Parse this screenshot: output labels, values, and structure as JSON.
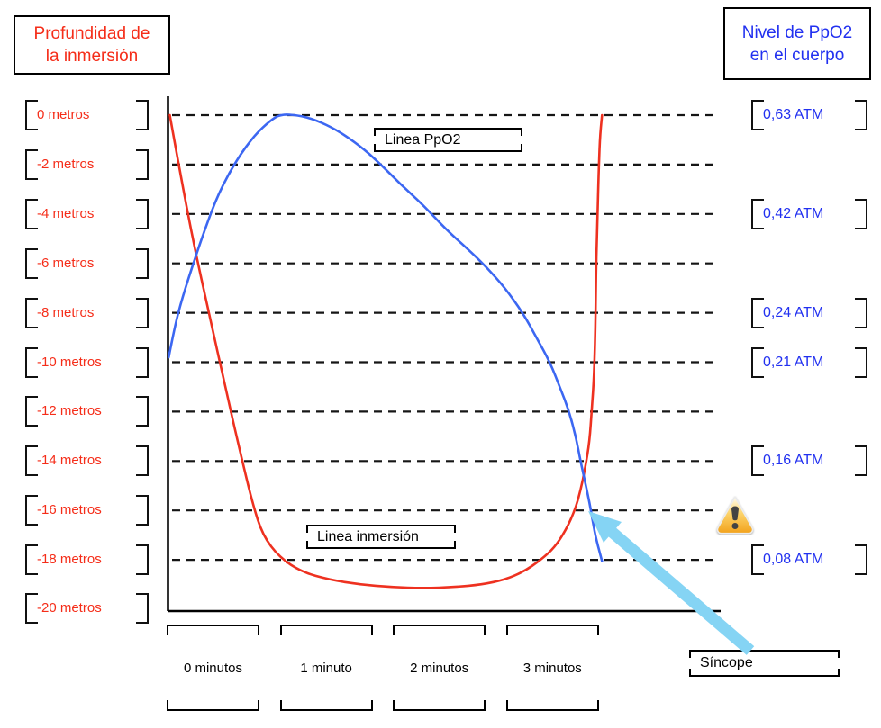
{
  "titles": {
    "left": [
      "Profundidad de",
      "la inmersión"
    ],
    "right": [
      "Nivel de PpO2",
      "en el cuerpo"
    ]
  },
  "annotations": {
    "ppo2_line_label": "Linea PpO2",
    "immersion_line_label": "Linea inmersión",
    "syncope_label": "Síncope",
    "warning_icon": "warning-icon at curve crossing"
  },
  "colors": {
    "red_text": "#f52d19",
    "blue_text": "#2130f0",
    "red_curve": "#ee3120",
    "blue_curve": "#3c67f2",
    "arrow": "#85d4f4",
    "grid": "#151515"
  },
  "axis": {
    "rows": [
      {
        "depth": "0 metros",
        "atm": "0,63 ATM"
      },
      {
        "depth": "-2 metros"
      },
      {
        "depth": "-4 metros",
        "atm": "0,42 ATM"
      },
      {
        "depth": "-6 metros"
      },
      {
        "depth": "-8 metros",
        "atm": "0,24 ATM"
      },
      {
        "depth": "-10 metros",
        "atm": "0,21 ATM"
      },
      {
        "depth": "-12 metros"
      },
      {
        "depth": "-14 metros",
        "atm": "0,16 ATM"
      },
      {
        "depth": "-16 metros"
      },
      {
        "depth": "-18 metros",
        "atm": "0,08 ATM"
      }
    ],
    "extra_depth_label": "-20 metros",
    "time_labels": [
      "0 minutos",
      "1 minuto",
      "2 minutos",
      "3 minutos"
    ]
  },
  "chart_data": {
    "type": "line",
    "title": "",
    "x": {
      "unit": "minutos",
      "tick_labels": [
        "0 minutos",
        "1 minuto",
        "2 minutos",
        "3 minutos"
      ],
      "range": [
        0,
        3.9
      ]
    },
    "y_left": {
      "unit": "metros",
      "range": [
        -20,
        0
      ],
      "tick_labels": [
        "0 metros",
        "-2 metros",
        "-4 metros",
        "-6 metros",
        "-8 metros",
        "-10 metros",
        "-12 metros",
        "-14 metros",
        "-16 metros",
        "-18 metros",
        "-20 metros"
      ]
    },
    "y_right": {
      "unit": "ATM",
      "scale": "nonlinear, aligned to depth gridlines",
      "tick_labels": [
        "0,63 ATM",
        "0,42 ATM",
        "0,24 ATM",
        "0,21 ATM",
        "0,16 ATM",
        "0,08 ATM"
      ],
      "anchors": [
        [
          0.63,
          0
        ],
        [
          0.42,
          2
        ],
        [
          0.24,
          4
        ],
        [
          0.21,
          5
        ],
        [
          0.16,
          7
        ],
        [
          0.08,
          9
        ]
      ]
    },
    "grid": "dashed horizontal lines at every 2 m depth level",
    "legend_position": "inline boxed labels on plot",
    "series": [
      {
        "name": "Linea inmersión",
        "color_role": "red_curve",
        "axis": "left",
        "unit": "metros",
        "points": [
          [
            0.02,
            0
          ],
          [
            0.11,
            -2.3
          ],
          [
            0.23,
            -5.2
          ],
          [
            0.37,
            -8.1
          ],
          [
            0.51,
            -11
          ],
          [
            0.64,
            -13.6
          ],
          [
            0.75,
            -15.7
          ],
          [
            0.84,
            -17
          ],
          [
            0.99,
            -17.9
          ],
          [
            1.19,
            -18.5
          ],
          [
            1.43,
            -18.8
          ],
          [
            1.7,
            -19
          ],
          [
            1.98,
            -19.1
          ],
          [
            2.26,
            -19.15
          ],
          [
            2.54,
            -19.1
          ],
          [
            2.78,
            -19
          ],
          [
            2.98,
            -18.8
          ],
          [
            3.14,
            -18.5
          ],
          [
            3.3,
            -18
          ],
          [
            3.42,
            -17.5
          ],
          [
            3.52,
            -16.8
          ],
          [
            3.6,
            -16
          ],
          [
            3.65,
            -15.2
          ],
          [
            3.69,
            -14.3
          ],
          [
            3.73,
            -13.2
          ],
          [
            3.75,
            -11.9
          ],
          [
            3.77,
            -10.5
          ],
          [
            3.78,
            -8.9
          ],
          [
            3.785,
            -7.3
          ],
          [
            3.79,
            -5.7
          ],
          [
            3.8,
            -4.1
          ],
          [
            3.81,
            -2.4
          ],
          [
            3.82,
            -1
          ],
          [
            3.84,
            0
          ]
        ]
      },
      {
        "name": "Linea PpO2",
        "color_role": "blue_curve",
        "axis": "right",
        "unit": "ATM",
        "points": [
          [
            0.01,
            0.213
          ],
          [
            0.05,
            0.227
          ],
          [
            0.11,
            0.253
          ],
          [
            0.21,
            0.319
          ],
          [
            0.33,
            0.392
          ],
          [
            0.45,
            0.464
          ],
          [
            0.61,
            0.535
          ],
          [
            0.77,
            0.588
          ],
          [
            0.91,
            0.619
          ],
          [
            1.0,
            0.632
          ],
          [
            1.15,
            0.63
          ],
          [
            1.31,
            0.62
          ],
          [
            1.5,
            0.598
          ],
          [
            1.7,
            0.565
          ],
          [
            1.86,
            0.531
          ],
          [
            2.06,
            0.483
          ],
          [
            2.26,
            0.439
          ],
          [
            2.46,
            0.392
          ],
          [
            2.66,
            0.355
          ],
          [
            2.82,
            0.323
          ],
          [
            2.98,
            0.286
          ],
          [
            3.14,
            0.24
          ],
          [
            3.26,
            0.225
          ],
          [
            3.38,
            0.21
          ],
          [
            3.47,
            0.197
          ],
          [
            3.55,
            0.185
          ],
          [
            3.61,
            0.172
          ],
          [
            3.65,
            0.16
          ],
          [
            3.69,
            0.143
          ],
          [
            3.73,
            0.126
          ],
          [
            3.76,
            0.11
          ],
          [
            3.79,
            0.096
          ],
          [
            3.84,
            0.079
          ]
        ]
      }
    ],
    "annotation_arrow": {
      "label": "Síncope",
      "points_to_t": 3.7,
      "points_to_atm": 0.12,
      "note": "arrow points to where PpO2 line falls past 0,16 ATM as diver ascends"
    }
  }
}
